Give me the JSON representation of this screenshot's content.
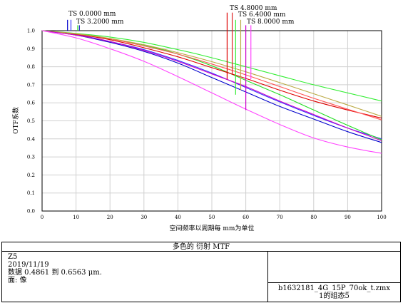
{
  "chart_data": {
    "type": "line",
    "xlabel": "空间频率以周期每 mm为单位",
    "ylabel": "OTF系数",
    "xlim": [
      0,
      100
    ],
    "ylim": [
      0,
      1.0
    ],
    "x_ticks": [
      "0",
      "10",
      "20",
      "30",
      "40",
      "50",
      "60",
      "70",
      "80",
      "90",
      "100"
    ],
    "y_ticks": [
      "0.0",
      "0.1",
      "0.2",
      "0.3",
      "0.4",
      "0.5",
      "0.6",
      "0.7",
      "0.8",
      "0.9",
      "1.0"
    ],
    "grid": true,
    "legend_position": "top",
    "legend": [
      {
        "name": "TS 0.0000 mm",
        "color": "#0000cc"
      },
      {
        "name": "TS 3.2000 mm",
        "color": "#3333ff"
      },
      {
        "name": "TS 4.8000 mm",
        "color": "#dd0000"
      },
      {
        "name": "TS 6.4000 mm",
        "color": "#bbbb22"
      },
      {
        "name": "TS 8.0000 mm",
        "color": "#cc00cc"
      }
    ],
    "series": [
      {
        "field": "TS 0.0000 mm",
        "color": "#0000cc",
        "x": [
          0,
          10,
          20,
          30,
          40,
          50,
          60,
          70,
          80,
          90,
          100
        ],
        "y": [
          1.0,
          0.975,
          0.935,
          0.885,
          0.82,
          0.74,
          0.66,
          0.58,
          0.51,
          0.44,
          0.38
        ]
      },
      {
        "field": "TS 3.2000 mm",
        "color": "#3333ff",
        "x": [
          0,
          10,
          20,
          30,
          40,
          50,
          60,
          70,
          80,
          90,
          100
        ],
        "y": [
          1.0,
          0.978,
          0.94,
          0.895,
          0.835,
          0.765,
          0.685,
          0.605,
          0.53,
          0.46,
          0.4
        ]
      },
      {
        "field": "TS 3.2000 mm",
        "color": "#22dd22",
        "x": [
          0,
          10,
          20,
          30,
          40,
          50,
          60,
          70,
          80,
          90,
          100
        ],
        "y": [
          1.0,
          0.98,
          0.955,
          0.92,
          0.87,
          0.805,
          0.725,
          0.645,
          0.56,
          0.475,
          0.395
        ]
      },
      {
        "field": "TS 4.8000 mm",
        "color": "#dd0000",
        "x": [
          0,
          10,
          20,
          30,
          40,
          50,
          60,
          70,
          80,
          90,
          100
        ],
        "y": [
          1.0,
          0.98,
          0.95,
          0.905,
          0.855,
          0.795,
          0.735,
          0.67,
          0.61,
          0.56,
          0.515
        ]
      },
      {
        "field": "TS 4.8000 mm",
        "color": "#ff5555",
        "x": [
          0,
          10,
          20,
          30,
          40,
          50,
          60,
          70,
          80,
          90,
          100
        ],
        "y": [
          1.0,
          0.982,
          0.955,
          0.915,
          0.87,
          0.815,
          0.755,
          0.69,
          0.625,
          0.565,
          0.505
        ]
      },
      {
        "field": "TS 6.4000 mm",
        "color": "#33ee33",
        "x": [
          0,
          10,
          20,
          30,
          40,
          50,
          60,
          70,
          80,
          90,
          100
        ],
        "y": [
          1.0,
          0.985,
          0.965,
          0.935,
          0.895,
          0.85,
          0.8,
          0.75,
          0.7,
          0.655,
          0.61
        ]
      },
      {
        "field": "TS 6.4000 mm",
        "color": "#bbaa44",
        "x": [
          0,
          10,
          20,
          30,
          40,
          50,
          60,
          70,
          80,
          90,
          100
        ],
        "y": [
          1.0,
          0.983,
          0.957,
          0.922,
          0.878,
          0.828,
          0.772,
          0.712,
          0.65,
          0.588,
          0.525
        ]
      },
      {
        "field": "TS 8.0000 mm",
        "color": "#cc00cc",
        "x": [
          0,
          10,
          20,
          30,
          40,
          50,
          60,
          70,
          80,
          90,
          100
        ],
        "y": [
          1.0,
          0.975,
          0.94,
          0.89,
          0.83,
          0.76,
          0.69,
          0.61,
          0.535,
          0.46,
          0.39
        ]
      },
      {
        "field": "TS 8.0000 mm",
        "color": "#ff44ff",
        "x": [
          0,
          10,
          20,
          30,
          40,
          50,
          60,
          70,
          80,
          90,
          100
        ],
        "y": [
          1.0,
          0.96,
          0.9,
          0.83,
          0.745,
          0.655,
          0.565,
          0.48,
          0.405,
          0.355,
          0.32
        ]
      }
    ],
    "legend_markers": [
      {
        "color": "#0000cc",
        "x": 7.5,
        "y_top": 1.06,
        "y_bot": 1.0
      },
      {
        "color": "#3333ff",
        "x": 8.5,
        "y_top": 1.06,
        "y_bot": 1.0
      },
      {
        "color": "#22dd22",
        "x": 10.5,
        "y_top": 1.03,
        "y_bot": 1.0
      },
      {
        "color": "#2222cc",
        "x": 11.0,
        "y_top": 1.03,
        "y_bot": 1.0
      },
      {
        "color": "#dd0000",
        "x": 54.5,
        "y_top": 1.1,
        "y_bot": 0.73
      },
      {
        "color": "#dd2222",
        "x": 56.0,
        "y_top": 1.1,
        "y_bot": 0.755
      },
      {
        "color": "#33ee33",
        "x": 57.0,
        "y_top": 1.06,
        "y_bot": 0.645
      },
      {
        "color": "#bbaa44",
        "x": 58.5,
        "y_top": 1.06,
        "y_bot": 0.67
      },
      {
        "color": "#cc00cc",
        "x": 60.0,
        "y_top": 1.03,
        "y_bot": 0.56
      },
      {
        "color": "#ff44ff",
        "x": 61.5,
        "y_top": 1.03,
        "y_bot": 0.73
      }
    ]
  },
  "footer": {
    "title": "多色的 衍射 MTF",
    "info_lines": [
      "Z5",
      "2019/11/19",
      "数据 0.4861 到 0.6563 μm.",
      "面: 像"
    ],
    "file_lines": [
      "b1632181_4G_15P_70ok_t.zmx",
      "1的组态5"
    ]
  }
}
